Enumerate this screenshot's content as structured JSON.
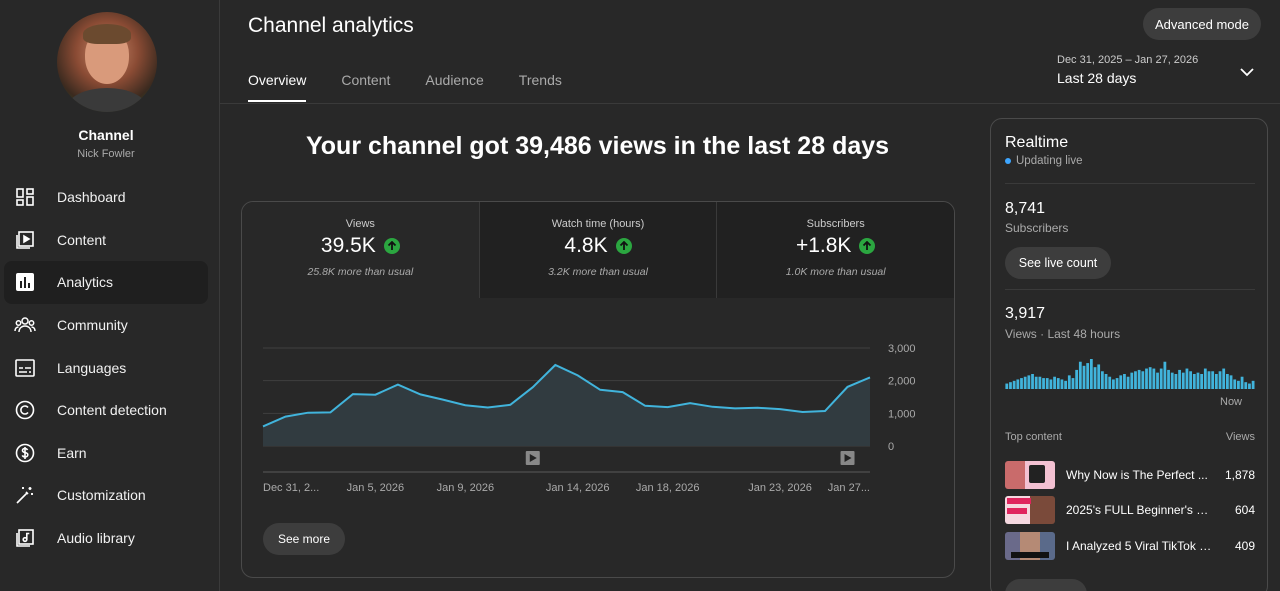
{
  "sidebar": {
    "channel_title": "Channel",
    "channel_name": "Nick Fowler",
    "items": [
      {
        "label": "Dashboard",
        "icon": "dashboard-icon"
      },
      {
        "label": "Content",
        "icon": "content-icon"
      },
      {
        "label": "Analytics",
        "icon": "analytics-icon",
        "active": true
      },
      {
        "label": "Community",
        "icon": "community-icon"
      },
      {
        "label": "Languages",
        "icon": "languages-icon"
      },
      {
        "label": "Content detection",
        "icon": "copyright-icon"
      },
      {
        "label": "Earn",
        "icon": "dollar-icon"
      },
      {
        "label": "Customization",
        "icon": "magic-wand-icon"
      },
      {
        "label": "Audio library",
        "icon": "audio-library-icon"
      }
    ]
  },
  "header": {
    "title": "Channel analytics",
    "advanced_mode": "Advanced mode",
    "tabs": [
      {
        "label": "Overview",
        "active": true
      },
      {
        "label": "Content"
      },
      {
        "label": "Audience"
      },
      {
        "label": "Trends"
      }
    ],
    "date_range_dates": "Dec 31, 2025 – Jan 27, 2026",
    "date_range_label": "Last 28 days"
  },
  "main": {
    "headline": "Your channel got 39,486 views in the last 28 days",
    "metrics": [
      {
        "label": "Views",
        "value": "39.5K",
        "sub": "25.8K more than usual"
      },
      {
        "label": "Watch time (hours)",
        "value": "4.8K",
        "sub": "3.2K more than usual"
      },
      {
        "label": "Subscribers",
        "value": "+1.8K",
        "sub": "1.0K more than usual"
      }
    ],
    "see_more": "See more"
  },
  "chart_data": {
    "type": "area",
    "x_tick_labels": [
      "Dec 31, 2...",
      "Jan 5, 2026",
      "Jan 9, 2026",
      "Jan 14, 2026",
      "Jan 18, 2026",
      "Jan 23, 2026",
      "Jan 27..."
    ],
    "x_tick_index": [
      0,
      5,
      9,
      14,
      18,
      23,
      27
    ],
    "y_ticks": [
      "0",
      "1,000",
      "2,000",
      "3,000"
    ],
    "ylim": [
      0,
      3000
    ],
    "values": [
      600,
      900,
      1020,
      1030,
      1590,
      1570,
      1880,
      1580,
      1420,
      1250,
      1180,
      1260,
      1800,
      2480,
      2160,
      1720,
      1650,
      1230,
      1190,
      1310,
      1200,
      1150,
      1170,
      1130,
      1040,
      1070,
      1810,
      2100
    ],
    "video_markers_index": [
      12,
      26
    ],
    "color": "#41b4dc"
  },
  "realtime": {
    "title": "Realtime",
    "live": "Updating live",
    "subscribers": "8,741",
    "subscribers_label": "Subscribers",
    "live_count_button": "See live count",
    "views": "3,917",
    "views_label": "Views · Last 48 hours",
    "now": "Now",
    "bars": [
      4,
      5,
      6,
      7,
      8,
      9,
      10,
      11,
      9,
      9,
      8,
      8,
      7,
      9,
      8,
      7,
      6,
      10,
      8,
      14,
      20,
      17,
      19,
      22,
      16,
      18,
      13,
      11,
      9,
      7,
      8,
      10,
      11,
      9,
      12,
      13,
      14,
      13,
      15,
      16,
      15,
      12,
      15,
      20,
      14,
      12,
      11,
      14,
      12,
      15,
      13,
      11,
      12,
      11,
      15,
      13,
      13,
      11,
      13,
      15,
      11,
      10,
      7,
      6,
      9,
      5,
      4,
      6
    ],
    "top_content_label": "Top content",
    "views_col_label": "Views",
    "top_content": [
      {
        "title": "Why Now is The Perfect ...",
        "views": "1,878"
      },
      {
        "title": "2025's FULL Beginner's Gui...",
        "views": "604"
      },
      {
        "title": "I Analyzed 5 Viral TikTok S...",
        "views": "409"
      }
    ]
  },
  "colors": {
    "accent_line": "#41b4dc",
    "positive": "#2ba640",
    "live_dot": "#3ea6ff"
  }
}
